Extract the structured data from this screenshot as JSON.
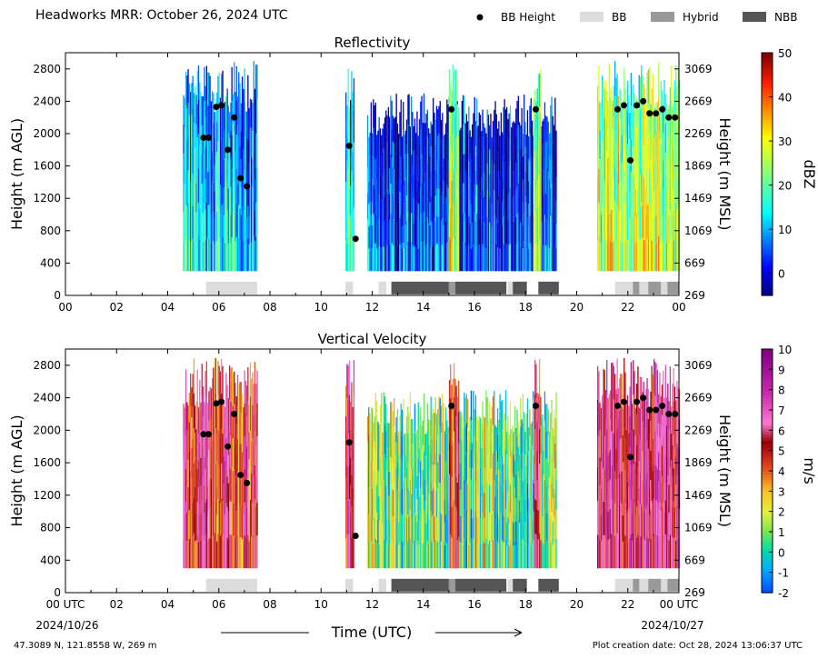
{
  "header": {
    "title": "Headworks MRR:  October 26, 2024 UTC",
    "legend": [
      {
        "label": "BB Height",
        "kind": "dot",
        "color": "#000000"
      },
      {
        "label": "BB",
        "kind": "box",
        "color": "#dcdcdc"
      },
      {
        "label": "Hybrid",
        "kind": "box",
        "color": "#999999"
      },
      {
        "label": "NBB",
        "kind": "box",
        "color": "#555555"
      }
    ]
  },
  "footer": {
    "coords": "47.3089 N, 121.8558 W, 269 m",
    "plot_created": "Plot creation date: Oct 28, 2024 13:06:37 UTC",
    "time_label": "Time (UTC)",
    "start_tick": "00 UTC",
    "start_date": "2024/10/26",
    "end_tick": "00 UTC",
    "end_date": "2024/10/27"
  },
  "chart_data": [
    {
      "type": "heatmap",
      "title": "Reflectivity",
      "ylabel": "Height (m AGL)",
      "ylabel_right": "Height (m MSL)",
      "colorbar_label": "dBZ",
      "colorbar_ticks": [
        "0",
        "10",
        "20",
        "30",
        "40",
        "50"
      ],
      "colorbar_range": [
        -5,
        50
      ],
      "xlim": [
        0,
        24
      ],
      "ylim": [
        0,
        3000
      ],
      "xticks": [
        "00",
        "02",
        "04",
        "06",
        "08",
        "10",
        "12",
        "14",
        "16",
        "18",
        "20",
        "22",
        "00"
      ],
      "yticks": [
        "0",
        "400",
        "800",
        "1200",
        "1600",
        "2000",
        "2400",
        "2800"
      ],
      "yticks_right": [
        "269",
        "669",
        "1069",
        "1469",
        "1869",
        "2269",
        "2669",
        "3069"
      ],
      "precip_periods": [
        {
          "start": 4.6,
          "end": 7.5,
          "top": 2900,
          "base": 300,
          "level": 0.35
        },
        {
          "start": 10.95,
          "end": 11.3,
          "top": 2900,
          "base": 300,
          "level": 0.45
        },
        {
          "start": 11.8,
          "end": 19.2,
          "top": 2500,
          "base": 300,
          "level": 0.2
        },
        {
          "start": 15.0,
          "end": 15.4,
          "top": 2900,
          "base": 300,
          "level": 0.55
        },
        {
          "start": 18.3,
          "end": 18.6,
          "top": 2900,
          "base": 300,
          "level": 0.6
        },
        {
          "start": 20.8,
          "end": 24.0,
          "top": 2900,
          "base": 300,
          "level": 0.6
        }
      ]
    },
    {
      "type": "heatmap",
      "title": "Vertical Velocity",
      "ylabel": "Height (m AGL)",
      "ylabel_right": "Height (m MSL)",
      "colorbar_label": "m/s",
      "colorbar_ticks": [
        "-2",
        "-1",
        "0",
        "1",
        "2",
        "3",
        "4",
        "5",
        "6",
        "7",
        "8",
        "9",
        "10"
      ],
      "colorbar_range": [
        -2,
        10
      ],
      "xlim": [
        0,
        24
      ],
      "ylim": [
        0,
        3000
      ],
      "xticks": [
        "00",
        "02",
        "04",
        "06",
        "08",
        "10",
        "12",
        "14",
        "16",
        "18",
        "20",
        "22",
        "00"
      ],
      "yticks": [
        "0",
        "400",
        "800",
        "1200",
        "1600",
        "2000",
        "2400",
        "2800"
      ],
      "yticks_right": [
        "269",
        "669",
        "1069",
        "1469",
        "1869",
        "2269",
        "2669",
        "3069"
      ],
      "precip_periods": [
        {
          "start": 4.6,
          "end": 7.5,
          "top": 2900,
          "base": 300,
          "level": 0.6
        },
        {
          "start": 10.95,
          "end": 11.3,
          "top": 2900,
          "base": 300,
          "level": 0.65
        },
        {
          "start": 11.8,
          "end": 19.2,
          "top": 2500,
          "base": 300,
          "level": 0.25
        },
        {
          "start": 15.0,
          "end": 15.4,
          "top": 2900,
          "base": 300,
          "level": 0.55
        },
        {
          "start": 18.3,
          "end": 18.6,
          "top": 2900,
          "base": 300,
          "level": 0.6
        },
        {
          "start": 20.8,
          "end": 24.0,
          "top": 2900,
          "base": 300,
          "level": 0.7
        }
      ]
    }
  ],
  "bb_height": [
    {
      "t": 5.4,
      "h": 1950
    },
    {
      "t": 5.6,
      "h": 1950
    },
    {
      "t": 5.9,
      "h": 2330
    },
    {
      "t": 6.1,
      "h": 2350
    },
    {
      "t": 6.35,
      "h": 1800
    },
    {
      "t": 6.6,
      "h": 2200
    },
    {
      "t": 6.85,
      "h": 1450
    },
    {
      "t": 7.1,
      "h": 1350
    },
    {
      "t": 11.1,
      "h": 1850
    },
    {
      "t": 11.35,
      "h": 700
    },
    {
      "t": 15.1,
      "h": 2300
    },
    {
      "t": 18.4,
      "h": 2300
    },
    {
      "t": 21.6,
      "h": 2300
    },
    {
      "t": 21.85,
      "h": 2350
    },
    {
      "t": 22.1,
      "h": 1670
    },
    {
      "t": 22.35,
      "h": 2350
    },
    {
      "t": 22.6,
      "h": 2400
    },
    {
      "t": 22.85,
      "h": 2250
    },
    {
      "t": 23.1,
      "h": 2250
    },
    {
      "t": 23.35,
      "h": 2300
    },
    {
      "t": 23.6,
      "h": 2200
    },
    {
      "t": 23.85,
      "h": 2200
    }
  ],
  "bb_type_segments": [
    {
      "start": 5.5,
      "end": 7.5,
      "type": "BB"
    },
    {
      "start": 10.95,
      "end": 11.25,
      "type": "BB"
    },
    {
      "start": 12.25,
      "end": 12.55,
      "type": "BB"
    },
    {
      "start": 12.75,
      "end": 15.0,
      "type": "NBB"
    },
    {
      "start": 15.0,
      "end": 15.25,
      "type": "Hybrid"
    },
    {
      "start": 15.25,
      "end": 17.25,
      "type": "NBB"
    },
    {
      "start": 17.3,
      "end": 17.5,
      "type": "BB"
    },
    {
      "start": 17.5,
      "end": 18.05,
      "type": "NBB"
    },
    {
      "start": 18.5,
      "end": 19.3,
      "type": "NBB"
    },
    {
      "start": 21.5,
      "end": 22.2,
      "type": "BB"
    },
    {
      "start": 22.2,
      "end": 22.45,
      "type": "Hybrid"
    },
    {
      "start": 22.45,
      "end": 22.8,
      "type": "BB"
    },
    {
      "start": 22.8,
      "end": 23.3,
      "type": "Hybrid"
    },
    {
      "start": 23.3,
      "end": 23.55,
      "type": "BB"
    },
    {
      "start": 23.55,
      "end": 24.0,
      "type": "Hybrid"
    }
  ]
}
